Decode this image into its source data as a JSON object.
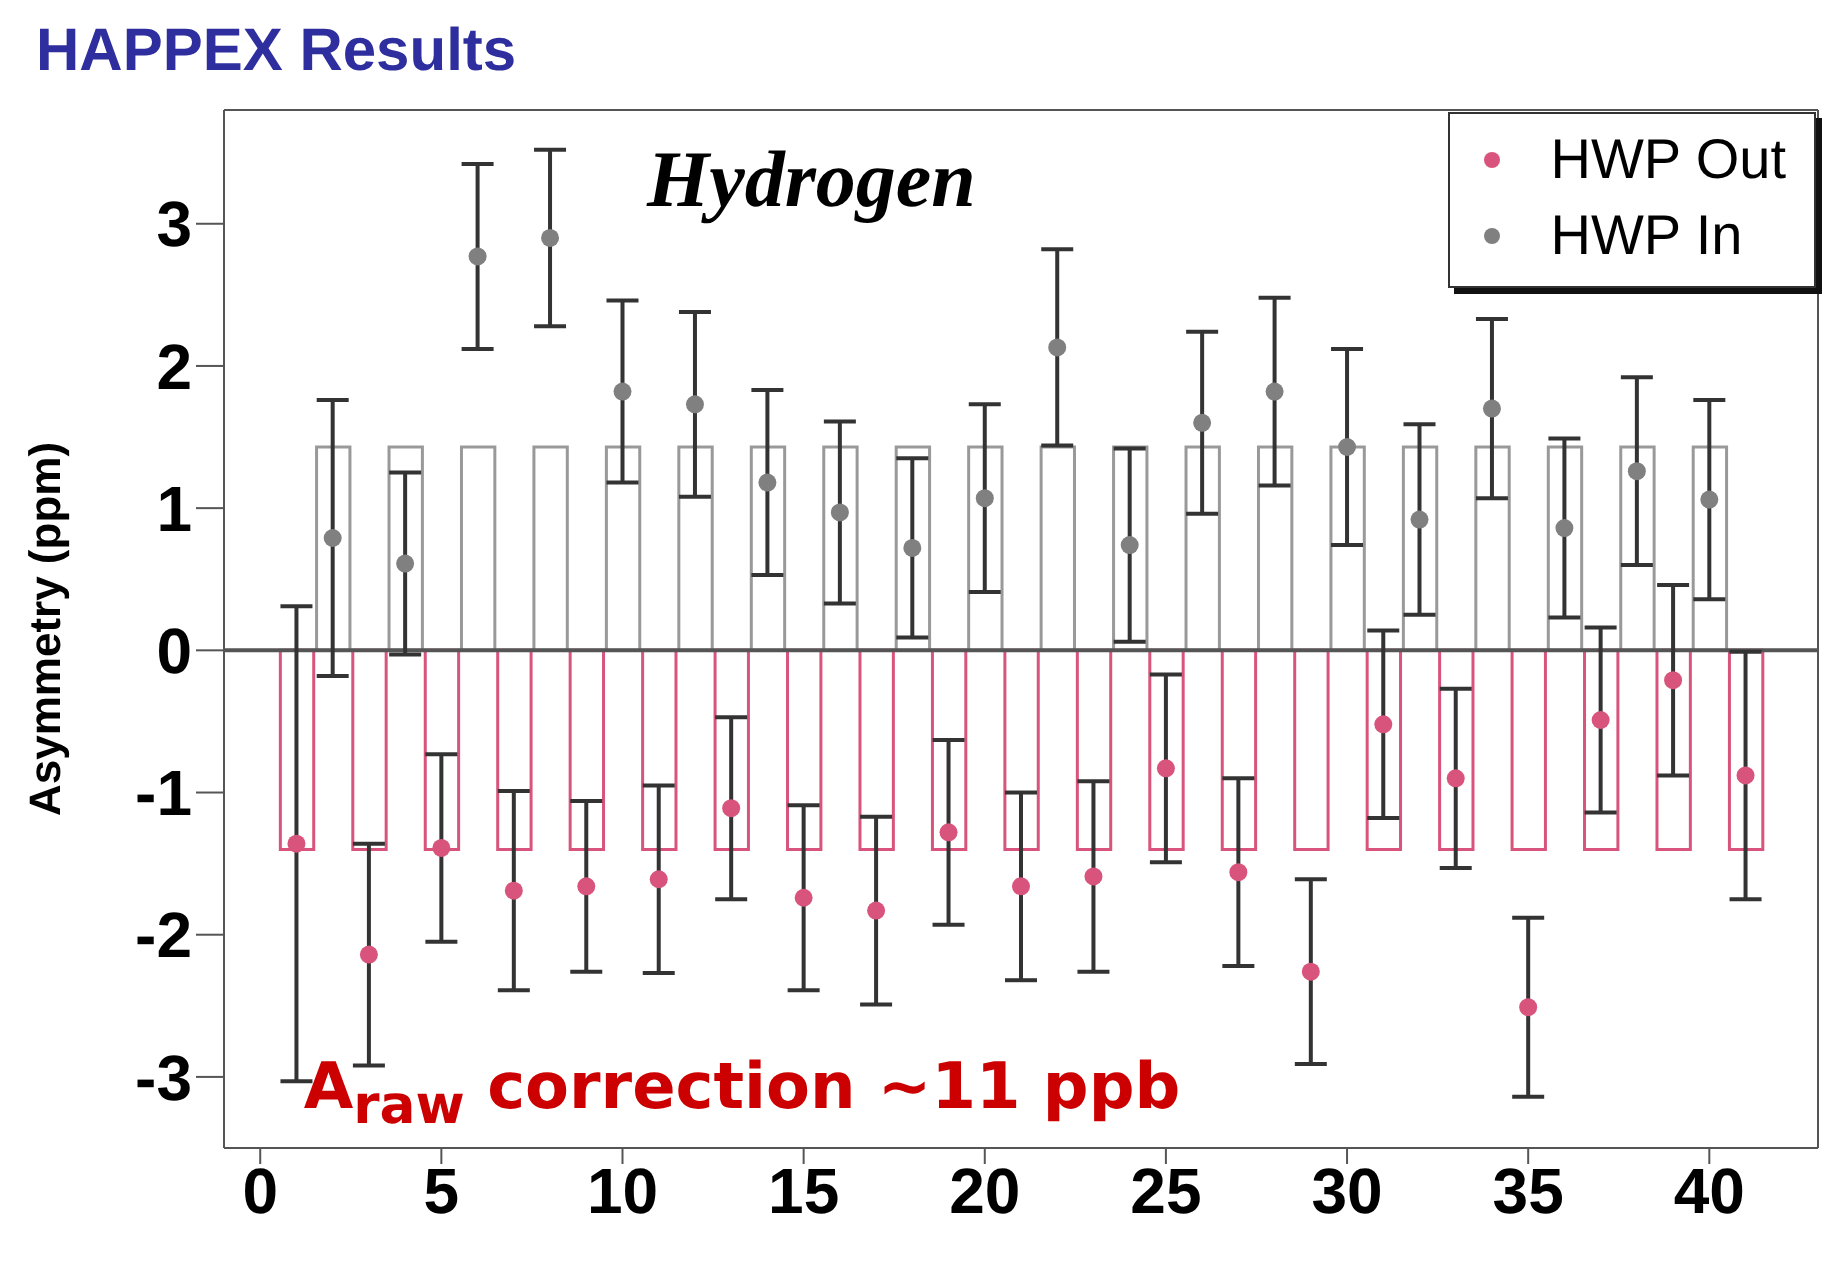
{
  "chart_data": {
    "type": "scatter",
    "title": "HAPPEX Results",
    "ylabel": "Asymmetry (ppm)",
    "annotations": [
      "Hydrogen",
      "A$_{raw}$ correction ~11 ppb"
    ],
    "xlim": [
      -1,
      43
    ],
    "xticks": [
      0,
      5,
      10,
      15,
      20,
      25,
      30,
      35,
      40
    ],
    "ylim": [
      -3.5,
      3.8
    ],
    "yticks": [
      -3,
      -2,
      -1,
      0,
      1,
      2,
      3
    ],
    "ref_lines": [
      {
        "axis": "y",
        "value": 0,
        "color": "#555555"
      }
    ],
    "legend": "top right",
    "marker": "circle",
    "grid": false,
    "series": [
      {
        "type": "bar",
        "color": "#999999",
        "x": [
          1,
          2,
          3,
          4,
          5,
          6,
          7,
          8,
          9,
          10,
          11,
          12,
          13,
          14,
          15,
          16,
          17,
          18,
          19,
          20,
          21,
          22,
          23,
          24,
          25,
          26,
          27,
          28,
          29,
          30,
          31,
          32,
          33,
          34,
          35,
          36,
          37,
          38,
          39,
          40,
          41
        ],
        "values": [
          -1.4,
          1.43,
          -1.4,
          1.43,
          -1.4,
          1.43,
          -1.4,
          1.43,
          -1.4,
          1.43,
          -1.4,
          1.43,
          -1.4,
          1.43,
          -1.4,
          1.43,
          -1.4,
          1.43,
          -1.4,
          1.43,
          -1.4,
          1.43,
          -1.4,
          1.43,
          -1.4,
          1.43,
          -1.4,
          1.43,
          -1.4,
          1.43,
          -1.4,
          1.43,
          -1.4,
          1.43,
          -1.4,
          1.43,
          -1.4,
          1.43,
          -1.4,
          1.43,
          -1.4
        ],
        "colors": [
          "#d9547c",
          "#999999",
          "#d9547c",
          "#999999",
          "#d9547c",
          "#999999",
          "#d9547c",
          "#999999",
          "#d9547c",
          "#999999",
          "#d9547c",
          "#999999",
          "#d9547c",
          "#999999",
          "#d9547c",
          "#999999",
          "#d9547c",
          "#999999",
          "#d9547c",
          "#999999",
          "#d9547c",
          "#999999",
          "#d9547c",
          "#999999",
          "#d9547c",
          "#999999",
          "#d9547c",
          "#999999",
          "#d9547c",
          "#999999",
          "#d9547c",
          "#999999",
          "#d9547c",
          "#999999",
          "#d9547c",
          "#999999",
          "#d9547c",
          "#999999",
          "#d9547c",
          "#999999",
          "#d9547c"
        ]
      },
      {
        "name": "HWP Out",
        "color": "#d9547c",
        "x": [
          1,
          3,
          5,
          7,
          9,
          11,
          13,
          15,
          17,
          19,
          21,
          23,
          25,
          27,
          29,
          31,
          33,
          35,
          37,
          39,
          41
        ],
        "values": [
          -1.36,
          -2.14,
          -1.39,
          -1.69,
          -1.66,
          -1.61,
          -1.11,
          -1.74,
          -1.83,
          -1.28,
          -1.66,
          -1.59,
          -0.83,
          -1.56,
          -2.26,
          -0.52,
          -0.9,
          -2.51,
          -0.49,
          -0.21,
          -0.88
        ],
        "errors": [
          1.67,
          0.78,
          0.66,
          0.7,
          0.6,
          0.66,
          0.64,
          0.65,
          0.66,
          0.65,
          0.66,
          0.67,
          0.66,
          0.66,
          0.65,
          0.66,
          0.63,
          0.63,
          0.65,
          0.67,
          0.87
        ]
      },
      {
        "name": "HWP In",
        "color": "#808080",
        "x": [
          2,
          4,
          6,
          8,
          10,
          12,
          14,
          16,
          18,
          20,
          22,
          24,
          26,
          28,
          30,
          32,
          34,
          36,
          38,
          40
        ],
        "values": [
          0.79,
          0.61,
          2.77,
          2.9,
          1.82,
          1.73,
          1.18,
          0.97,
          0.72,
          1.07,
          2.13,
          0.74,
          1.6,
          1.82,
          1.43,
          0.92,
          1.7,
          0.86,
          1.26,
          1.06
        ],
        "errors": [
          0.97,
          0.64,
          0.65,
          0.62,
          0.64,
          0.65,
          0.65,
          0.64,
          0.63,
          0.66,
          0.69,
          0.68,
          0.64,
          0.66,
          0.69,
          0.67,
          0.63,
          0.63,
          0.66,
          0.7
        ]
      }
    ]
  }
}
